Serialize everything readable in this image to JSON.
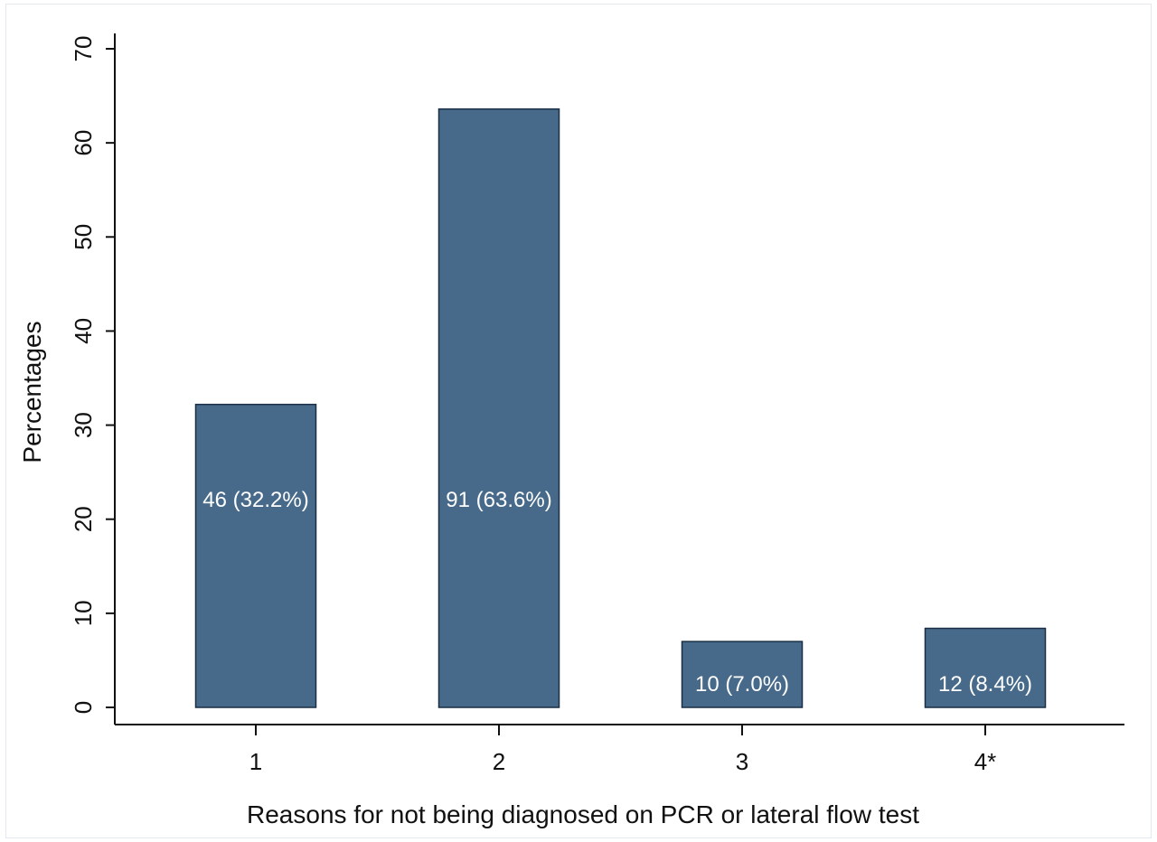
{
  "chart_data": {
    "type": "bar",
    "categories": [
      "1",
      "2",
      "3",
      "4*"
    ],
    "values": [
      32.2,
      63.6,
      7.0,
      8.4
    ],
    "bar_labels": [
      "46 (32.2%)",
      "91 (63.6%)",
      "10 (7.0%)",
      "12 (8.4%)"
    ],
    "xlabel": "Reasons for not being diagnosed on PCR or lateral flow test",
    "ylabel": "Percentages",
    "ylim": [
      0,
      70
    ],
    "yticks": [
      "0",
      "10",
      "20",
      "30",
      "40",
      "50",
      "60",
      "70"
    ],
    "grid": false,
    "legend": "none",
    "bar_color": "#476a8a",
    "bar_edge_color": "#1a2f45"
  }
}
